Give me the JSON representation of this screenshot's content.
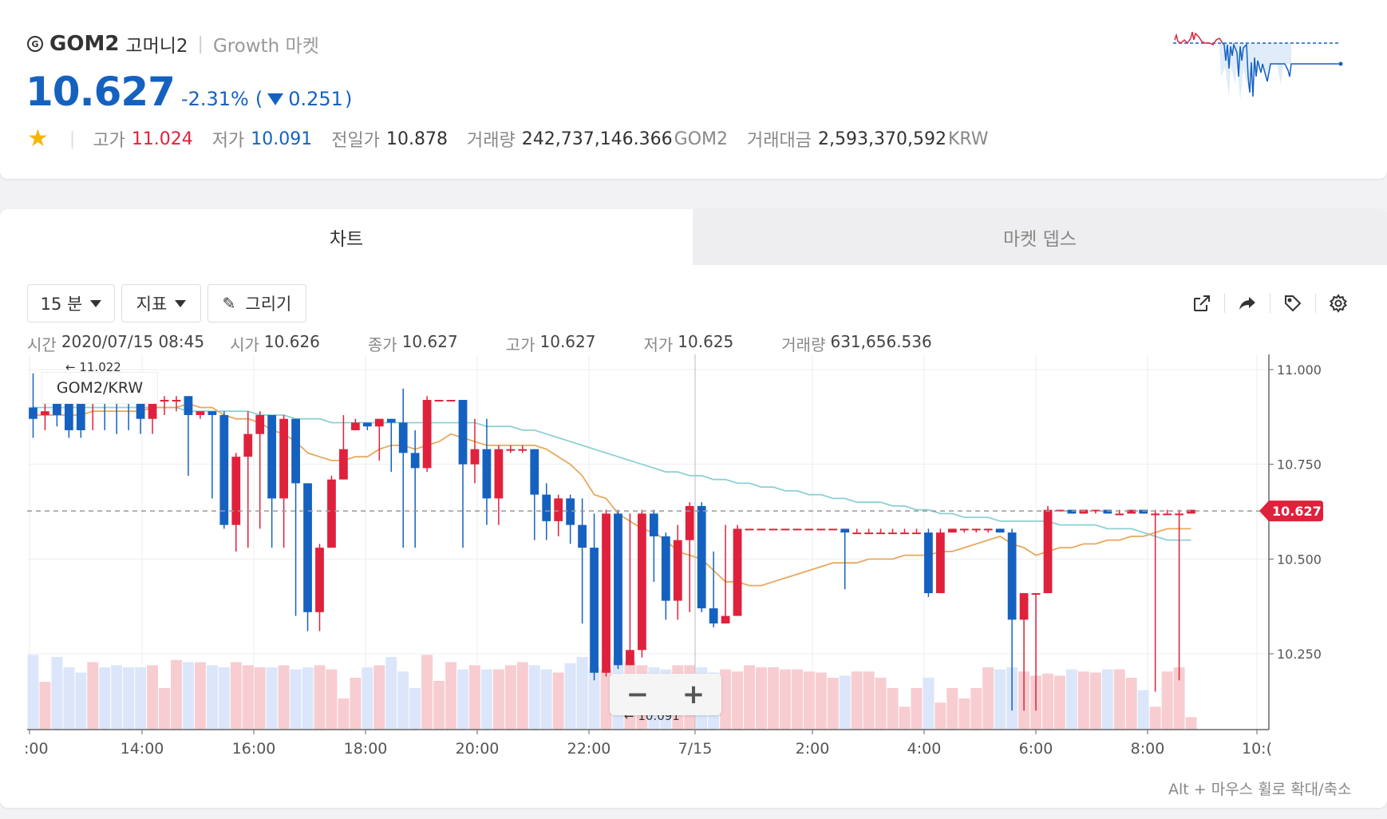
{
  "header": {
    "coin_icon": "G",
    "symbol": "GOM2",
    "korean_name": "고머니2",
    "market": "Growth 마켓",
    "price": "10.627",
    "change_pct": "-2.31%",
    "change_open": "(",
    "change_abs": "0.251",
    "change_close": ")",
    "stats": {
      "high_label": "고가",
      "high": "11.024",
      "low_label": "저가",
      "low": "10.091",
      "prev_label": "전일가",
      "prev": "10.878",
      "volume_label": "거래량",
      "volume": "242,737,146.366",
      "volume_unit": "GOM2",
      "amount_label": "거래대금",
      "amount": "2,593,370,592",
      "amount_unit": "KRW"
    }
  },
  "tabs": [
    {
      "label": "차트"
    },
    {
      "label": "마켓 뎁스"
    }
  ],
  "toolbar": {
    "interval_label": "15 분",
    "indicator_label": "지표",
    "draw_label": "그리기"
  },
  "ohlc": {
    "time_label": "시간",
    "time": "2020/07/15 08:45",
    "open_label": "시가",
    "open": "10.626",
    "close_label": "종가",
    "close": "10.627",
    "high_label": "고가",
    "high": "10.627",
    "low_label": "저가",
    "low": "10.625",
    "volume_label": "거래량",
    "volume": "631,656.536"
  },
  "chart": {
    "pair": "GOM2/KRW",
    "high_marker": "← 11.022",
    "low_marker": "← 10.091",
    "current_price": "10.627",
    "y_ticks": [
      "11.000",
      "10.750",
      "10.500",
      "10.250"
    ],
    "x_ticks": [
      ":00",
      "14:00",
      "16:00",
      "18:00",
      "20:00",
      "22:00",
      "7/15",
      "2:00",
      "4:00",
      "6:00",
      "8:00",
      "10:("
    ],
    "colors": {
      "up": "#e0213c",
      "down": "#1561c0",
      "ma_short": "#e8a85c",
      "ma_long": "#8dd0d4"
    }
  },
  "chart_data": {
    "type": "candlestick",
    "ylim": [
      10.05,
      11.04
    ],
    "candles": [
      [
        10.9,
        10.87,
        10.99,
        10.82
      ],
      [
        10.88,
        10.89,
        10.98,
        10.84
      ],
      [
        10.91,
        10.88,
        10.97,
        10.85
      ],
      [
        10.93,
        10.84,
        10.98,
        10.82
      ],
      [
        10.93,
        10.84,
        10.98,
        10.82
      ],
      [
        10.92,
        10.93,
        10.96,
        10.84
      ],
      [
        10.92,
        10.91,
        10.95,
        10.84
      ],
      [
        10.92,
        10.91,
        10.95,
        10.83
      ],
      [
        10.92,
        10.91,
        10.95,
        10.84
      ],
      [
        10.92,
        10.87,
        10.93,
        10.83
      ],
      [
        10.87,
        10.92,
        10.94,
        10.83
      ],
      [
        10.92,
        10.92,
        10.93,
        10.88
      ],
      [
        10.92,
        10.92,
        10.93,
        10.89
      ],
      [
        10.93,
        10.88,
        10.93,
        10.72
      ],
      [
        10.88,
        10.89,
        10.89,
        10.87
      ],
      [
        10.89,
        10.88,
        10.89,
        10.66
      ],
      [
        10.88,
        10.59,
        10.89,
        10.58
      ],
      [
        10.59,
        10.77,
        10.78,
        10.52
      ],
      [
        10.77,
        10.83,
        10.89,
        10.53
      ],
      [
        10.83,
        10.88,
        10.89,
        10.58
      ],
      [
        10.88,
        10.66,
        10.88,
        10.53
      ],
      [
        10.66,
        10.87,
        10.88,
        10.53
      ],
      [
        10.87,
        10.7,
        10.87,
        10.35
      ],
      [
        10.7,
        10.36,
        10.7,
        10.31
      ],
      [
        10.36,
        10.53,
        10.54,
        10.31
      ],
      [
        10.53,
        10.71,
        10.72,
        10.53
      ],
      [
        10.71,
        10.79,
        10.88,
        10.71
      ],
      [
        10.84,
        10.86,
        10.87,
        10.84
      ],
      [
        10.86,
        10.85,
        10.86,
        10.84
      ],
      [
        10.85,
        10.87,
        10.87,
        10.76
      ],
      [
        10.87,
        10.86,
        10.87,
        10.73
      ],
      [
        10.86,
        10.78,
        10.95,
        10.53
      ],
      [
        10.78,
        10.74,
        10.84,
        10.53
      ],
      [
        10.74,
        10.92,
        10.93,
        10.73
      ],
      [
        10.92,
        10.92,
        10.92,
        10.92
      ],
      [
        10.92,
        10.92,
        10.92,
        10.92
      ],
      [
        10.92,
        10.75,
        10.92,
        10.53
      ],
      [
        10.75,
        10.79,
        10.87,
        10.7
      ],
      [
        10.79,
        10.66,
        10.87,
        10.59
      ],
      [
        10.66,
        10.79,
        10.8,
        10.59
      ],
      [
        10.79,
        10.79,
        10.8,
        10.78
      ],
      [
        10.79,
        10.79,
        10.8,
        10.78
      ],
      [
        10.79,
        10.67,
        10.79,
        10.55
      ],
      [
        10.67,
        10.6,
        10.7,
        10.55
      ],
      [
        10.6,
        10.66,
        10.67,
        10.56
      ],
      [
        10.66,
        10.59,
        10.67,
        10.54
      ],
      [
        10.59,
        10.53,
        10.66,
        10.33
      ],
      [
        10.53,
        10.2,
        10.62,
        10.18
      ],
      [
        10.2,
        10.62,
        10.63,
        10.19
      ],
      [
        10.62,
        10.22,
        10.63,
        10.21
      ],
      [
        10.22,
        10.26,
        10.62,
        10.22
      ],
      [
        10.26,
        10.62,
        10.63,
        10.24
      ],
      [
        10.62,
        10.56,
        10.63,
        10.44
      ],
      [
        10.56,
        10.39,
        10.57,
        10.34
      ],
      [
        10.39,
        10.55,
        10.59,
        10.34
      ],
      [
        10.55,
        10.64,
        10.65,
        10.36
      ],
      [
        10.64,
        10.37,
        10.65,
        10.36
      ],
      [
        10.37,
        10.33,
        10.52,
        10.32
      ],
      [
        10.33,
        10.35,
        10.59,
        10.34
      ],
      [
        10.35,
        10.58,
        10.59,
        10.35
      ],
      [
        10.58,
        10.58,
        10.58,
        10.58
      ],
      [
        10.58,
        10.58,
        10.58,
        10.58
      ],
      [
        10.58,
        10.58,
        10.58,
        10.58
      ],
      [
        10.58,
        10.58,
        10.58,
        10.58
      ],
      [
        10.58,
        10.58,
        10.58,
        10.58
      ],
      [
        10.58,
        10.58,
        10.58,
        10.58
      ],
      [
        10.58,
        10.58,
        10.58,
        10.58
      ],
      [
        10.58,
        10.58,
        10.58,
        10.58
      ],
      [
        10.58,
        10.57,
        10.58,
        10.42
      ],
      [
        10.57,
        10.57,
        10.58,
        10.57
      ],
      [
        10.57,
        10.57,
        10.58,
        10.57
      ],
      [
        10.57,
        10.57,
        10.58,
        10.57
      ],
      [
        10.57,
        10.57,
        10.58,
        10.57
      ],
      [
        10.57,
        10.57,
        10.58,
        10.57
      ],
      [
        10.57,
        10.57,
        10.58,
        10.57
      ],
      [
        10.57,
        10.41,
        10.58,
        10.4
      ],
      [
        10.41,
        10.57,
        10.58,
        10.41
      ],
      [
        10.57,
        10.58,
        10.58,
        10.57
      ],
      [
        10.58,
        10.58,
        10.58,
        10.57
      ],
      [
        10.58,
        10.58,
        10.58,
        10.57
      ],
      [
        10.58,
        10.58,
        10.58,
        10.57
      ],
      [
        10.58,
        10.57,
        10.58,
        10.57
      ],
      [
        10.57,
        10.34,
        10.58,
        10.1
      ],
      [
        10.34,
        10.41,
        10.41,
        10.1
      ],
      [
        10.41,
        10.41,
        10.41,
        10.1
      ],
      [
        10.41,
        10.63,
        10.64,
        10.41
      ],
      [
        10.63,
        10.63,
        10.63,
        10.63
      ],
      [
        10.63,
        10.62,
        10.63,
        10.62
      ],
      [
        10.62,
        10.63,
        10.63,
        10.62
      ],
      [
        10.63,
        10.63,
        10.63,
        10.62
      ],
      [
        10.63,
        10.62,
        10.63,
        10.62
      ],
      [
        10.62,
        10.62,
        10.63,
        10.62
      ],
      [
        10.62,
        10.63,
        10.63,
        10.62
      ],
      [
        10.63,
        10.62,
        10.63,
        10.62
      ],
      [
        10.62,
        10.62,
        10.63,
        10.15
      ],
      [
        10.62,
        10.62,
        10.63,
        10.62
      ],
      [
        10.62,
        10.62,
        10.63,
        10.18
      ],
      [
        10.62,
        10.63,
        10.63,
        10.62
      ]
    ],
    "ma_short": [
      10.88,
      10.88,
      10.88,
      10.88,
      10.88,
      10.89,
      10.89,
      10.89,
      10.89,
      10.89,
      10.9,
      10.9,
      10.9,
      10.91,
      10.9,
      10.9,
      10.88,
      10.87,
      10.87,
      10.86,
      10.84,
      10.83,
      10.81,
      10.78,
      10.77,
      10.76,
      10.76,
      10.77,
      10.77,
      10.79,
      10.8,
      10.8,
      10.79,
      10.8,
      10.81,
      10.83,
      10.82,
      10.81,
      10.8,
      10.8,
      10.8,
      10.8,
      10.8,
      10.79,
      10.77,
      10.75,
      10.72,
      10.67,
      10.66,
      10.62,
      10.6,
      10.58,
      10.57,
      10.55,
      10.52,
      10.51,
      10.5,
      10.47,
      10.44,
      10.44,
      10.43,
      10.43,
      10.44,
      10.45,
      10.46,
      10.47,
      10.48,
      10.49,
      10.49,
      10.49,
      10.5,
      10.5,
      10.5,
      10.51,
      10.51,
      10.51,
      10.52,
      10.52,
      10.53,
      10.54,
      10.55,
      10.56,
      10.54,
      10.53,
      10.51,
      10.52,
      10.53,
      10.53,
      10.54,
      10.54,
      10.55,
      10.55,
      10.56,
      10.56,
      10.57,
      10.58,
      10.58,
      10.58
    ],
    "ma_long": [
      10.9,
      10.9,
      10.9,
      10.9,
      10.9,
      10.9,
      10.9,
      10.9,
      10.9,
      10.9,
      10.9,
      10.9,
      10.9,
      10.89,
      10.89,
      10.89,
      10.89,
      10.89,
      10.89,
      10.88,
      10.88,
      10.88,
      10.87,
      10.87,
      10.87,
      10.86,
      10.86,
      10.86,
      10.86,
      10.86,
      10.86,
      10.86,
      10.86,
      10.86,
      10.86,
      10.86,
      10.86,
      10.86,
      10.85,
      10.85,
      10.85,
      10.84,
      10.84,
      10.83,
      10.82,
      10.81,
      10.8,
      10.79,
      10.78,
      10.77,
      10.76,
      10.75,
      10.74,
      10.73,
      10.73,
      10.72,
      10.72,
      10.71,
      10.71,
      10.7,
      10.7,
      10.69,
      10.69,
      10.68,
      10.68,
      10.67,
      10.67,
      10.66,
      10.66,
      10.65,
      10.65,
      10.65,
      10.64,
      10.64,
      10.63,
      10.63,
      10.62,
      10.62,
      10.61,
      10.61,
      10.61,
      10.6,
      10.6,
      10.6,
      10.6,
      10.6,
      10.59,
      10.59,
      10.59,
      10.59,
      10.58,
      10.58,
      10.58,
      10.57,
      10.56,
      10.55,
      10.55,
      10.55
    ],
    "volume": [
      0.72,
      0.46,
      0.7,
      0.6,
      0.55,
      0.65,
      0.6,
      0.62,
      0.6,
      0.6,
      0.62,
      0.4,
      0.67,
      0.65,
      0.65,
      0.62,
      0.6,
      0.65,
      0.62,
      0.6,
      0.6,
      0.62,
      0.58,
      0.6,
      0.62,
      0.58,
      0.3,
      0.5,
      0.6,
      0.62,
      0.7,
      0.56,
      0.4,
      0.72,
      0.47,
      0.65,
      0.58,
      0.62,
      0.58,
      0.58,
      0.62,
      0.65,
      0.62,
      0.58,
      0.55,
      0.64,
      0.7,
      0.6,
      0.58,
      0.68,
      0.66,
      0.62,
      0.6,
      0.58,
      0.62,
      0.62,
      0.6,
      0.55,
      0.58,
      0.56,
      0.62,
      0.6,
      0.6,
      0.58,
      0.58,
      0.56,
      0.55,
      0.5,
      0.52,
      0.56,
      0.56,
      0.5,
      0.4,
      0.22,
      0.4,
      0.5,
      0.26,
      0.4,
      0.3,
      0.4,
      0.6,
      0.58,
      0.6,
      0.56,
      0.52,
      0.54,
      0.52,
      0.58,
      0.56,
      0.55,
      0.58,
      0.58,
      0.5,
      0.38,
      0.22,
      0.56,
      0.6,
      0.12
    ]
  }
}
